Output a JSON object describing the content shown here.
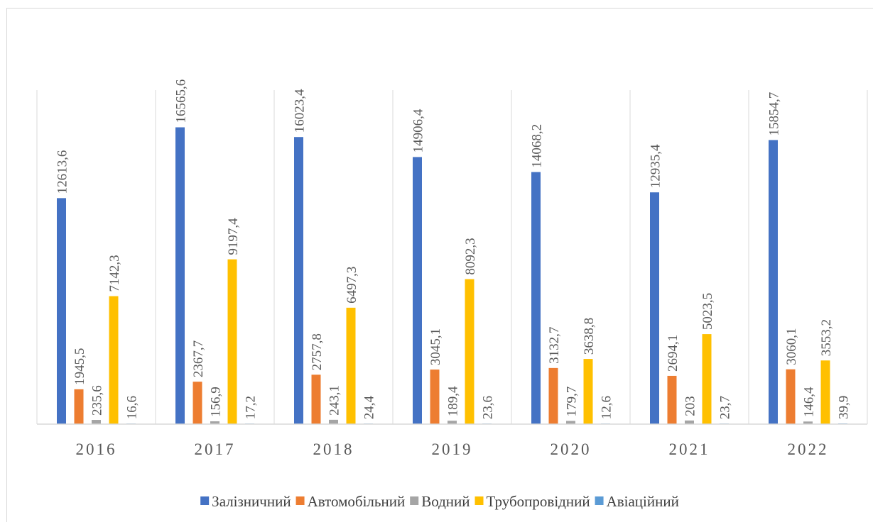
{
  "chart_data": {
    "type": "bar",
    "categories": [
      "2016",
      "2017",
      "2018",
      "2019",
      "2020",
      "2021",
      "2022"
    ],
    "series": [
      {
        "name": "Залізничний",
        "color": "#4472c4",
        "values": [
          12613.6,
          16565.6,
          16023.4,
          14906.4,
          14068.2,
          12935.4,
          15854.7
        ],
        "labels": [
          "12613,6",
          "16565,6",
          "16023,4",
          "14906,4",
          "14068,2",
          "12935,4",
          "15854,7"
        ]
      },
      {
        "name": "Автомобільний",
        "color": "#ed7d31",
        "values": [
          1945.5,
          2367.7,
          2757.8,
          3045.1,
          3132.7,
          2694.1,
          3060.1
        ],
        "labels": [
          "1945,5",
          "2367,7",
          "2757,8",
          "3045,1",
          "3132,7",
          "2694,1",
          "3060,1"
        ]
      },
      {
        "name": "Водний",
        "color": "#a5a5a5",
        "values": [
          235.6,
          156.9,
          243.1,
          189.4,
          179.7,
          203,
          146.4
        ],
        "labels": [
          "235,6",
          "156,9",
          "243,1",
          "189,4",
          "179,7",
          "203",
          "146,4"
        ]
      },
      {
        "name": "Трубопровідний",
        "color": "#ffc000",
        "values": [
          7142.3,
          9197.4,
          6497.3,
          8092.3,
          3638.8,
          5023.5,
          3553.2
        ],
        "labels": [
          "7142,3",
          "9197,4",
          "6497,3",
          "8092,3",
          "3638,8",
          "5023,5",
          "3553,2"
        ]
      },
      {
        "name": "Авіаційний",
        "color": "#5b9bd5",
        "values": [
          16.6,
          17.2,
          24.4,
          23.6,
          12.6,
          23.7,
          39.9
        ],
        "labels": [
          "16,6",
          "17,2",
          "24,4",
          "23,6",
          "12,6",
          "23,7",
          "39,9"
        ]
      }
    ],
    "title": "",
    "xlabel": "",
    "ylabel": "",
    "grid": "vertical category separators",
    "legend_position": "bottom"
  }
}
